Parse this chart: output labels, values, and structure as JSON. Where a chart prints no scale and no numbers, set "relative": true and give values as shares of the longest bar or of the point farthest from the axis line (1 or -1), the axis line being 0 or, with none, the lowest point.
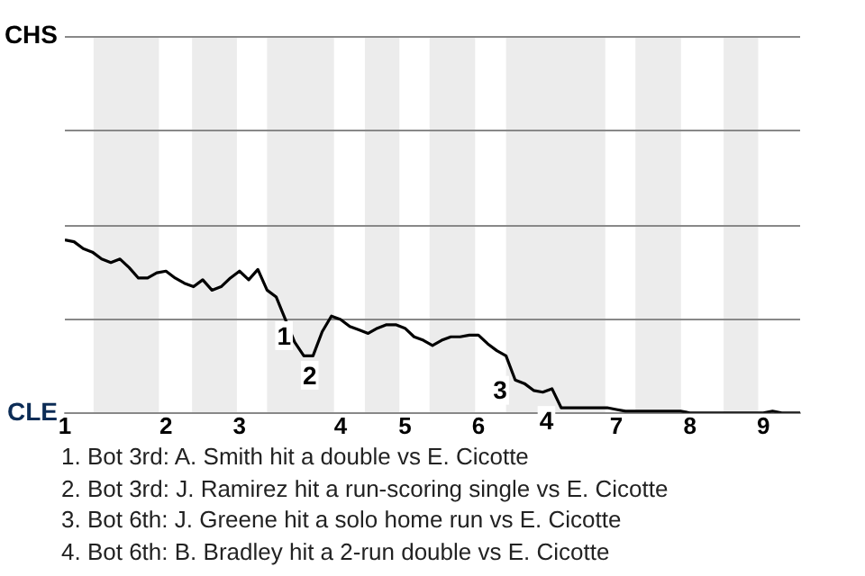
{
  "chart_data": {
    "type": "line",
    "relative": true,
    "categories": [
      "1",
      null,
      null,
      null,
      null,
      null,
      null,
      null,
      null,
      null,
      null,
      "2",
      null,
      null,
      null,
      null,
      null,
      null,
      null,
      "3",
      null,
      null,
      null,
      null,
      null,
      null,
      null,
      null,
      null,
      null,
      "4",
      null,
      null,
      null,
      null,
      null,
      null,
      "5",
      null,
      null,
      null,
      null,
      null,
      null,
      null,
      "6",
      null,
      null,
      null,
      null,
      null,
      null,
      null,
      null,
      null,
      null,
      null,
      null,
      null,
      null,
      "7",
      null,
      null,
      null,
      null,
      null,
      null,
      null,
      "8",
      null,
      null,
      null,
      null,
      null,
      null,
      null,
      "9",
      null,
      null,
      null,
      null
    ],
    "series": [
      {
        "color": "#000000",
        "values": [
          1,
          0.99,
          0.95,
          0.93,
          0.89,
          0.87,
          0.89,
          0.84,
          0.78,
          0.78,
          0.81,
          0.82,
          0.78,
          0.75,
          0.73,
          0.77,
          0.71,
          0.73,
          0.78,
          0.82,
          0.77,
          0.83,
          0.71,
          0.67,
          0.54,
          0.41,
          0.33,
          0.33,
          0.47,
          0.56,
          0.54,
          0.5,
          0.48,
          0.46,
          0.49,
          0.51,
          0.51,
          0.49,
          0.44,
          0.42,
          0.39,
          0.42,
          0.44,
          0.44,
          0.45,
          0.45,
          0.4,
          0.36,
          0.33,
          0.19,
          0.17,
          0.13,
          0.12,
          0.14,
          0.03,
          0.03,
          0.03,
          0.03,
          0.03,
          0.03,
          0.02,
          0.01,
          0.01,
          0.01,
          0.01,
          0.01,
          0.01,
          0.01,
          0,
          0,
          0,
          0,
          0,
          0,
          0,
          0,
          0,
          0.01,
          0,
          0,
          0
        ]
      }
    ],
    "ylim": [
      0,
      2.18
    ],
    "grid": "y",
    "legend": false,
    "marker": "none",
    "line_style": "solid",
    "annotations": [
      "CHS",
      "CLE",
      "1",
      "2",
      "3",
      "4",
      "1. Bot 3rd: A. Smith hit a double vs E. Cicotte",
      "2. Bot 3rd: J. Ramirez hit a run-scoring single vs E. Cicotte",
      "3. Bot 6th: J. Greene hit a solo home run vs E. Cicotte",
      "4. Bot 6th: B. Bradley hit a 2-run double vs E. Cicotte"
    ]
  }
}
